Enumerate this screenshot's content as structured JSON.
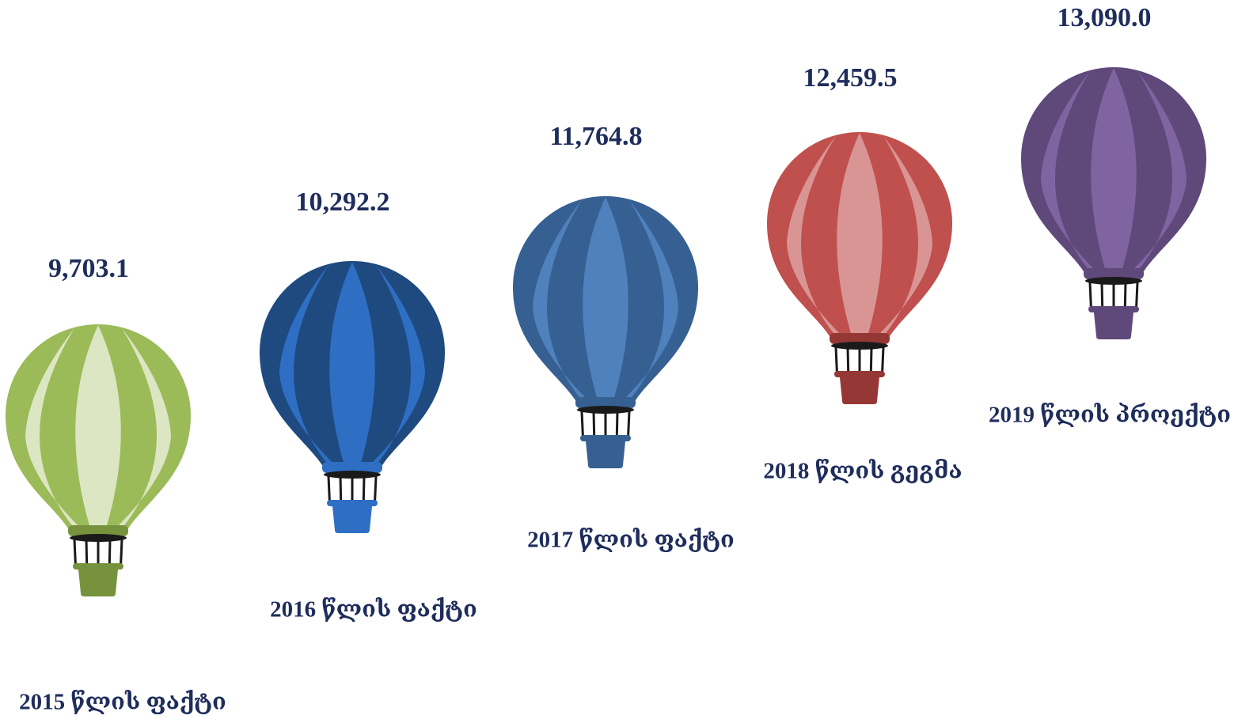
{
  "items": [
    {
      "value": "9,703.1",
      "label": "2015 წლის ფაქტი"
    },
    {
      "value": "10,292.2",
      "label": "2016 წლის ფაქტი"
    },
    {
      "value": "11,764.8",
      "label": "2017 წლის ფაქტი"
    },
    {
      "value": "12,459.5",
      "label": "2018 წლის გეგმა"
    },
    {
      "value": "13,090.0",
      "label": "2019 წლის პროექტი"
    }
  ]
}
